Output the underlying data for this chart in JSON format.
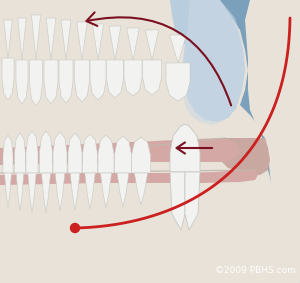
{
  "bg_color": "#7aa0bc",
  "skull_color": "#e8e2d8",
  "skull_inner_color": "#ddd8cc",
  "sinus_color": "#b8cede",
  "gum_upper_color": "#d4a8a4",
  "gum_lower_color": "#d4a8a4",
  "tooth_white": "#f2f2f0",
  "tooth_edge": "#c8c8c4",
  "jaw_ramus_color": "#ddd8cc",
  "mouth_open_color": "#c8a8a0",
  "arrow_dark": "#7a1020",
  "probe_red": "#cc2020",
  "probe_ball": "#cc2020",
  "copyright_text": "©2009 PBHS.com",
  "copyright_color": "#ffffff",
  "copyright_fontsize": 6.5,
  "figsize": [
    3.0,
    2.83
  ],
  "dpi": 100
}
